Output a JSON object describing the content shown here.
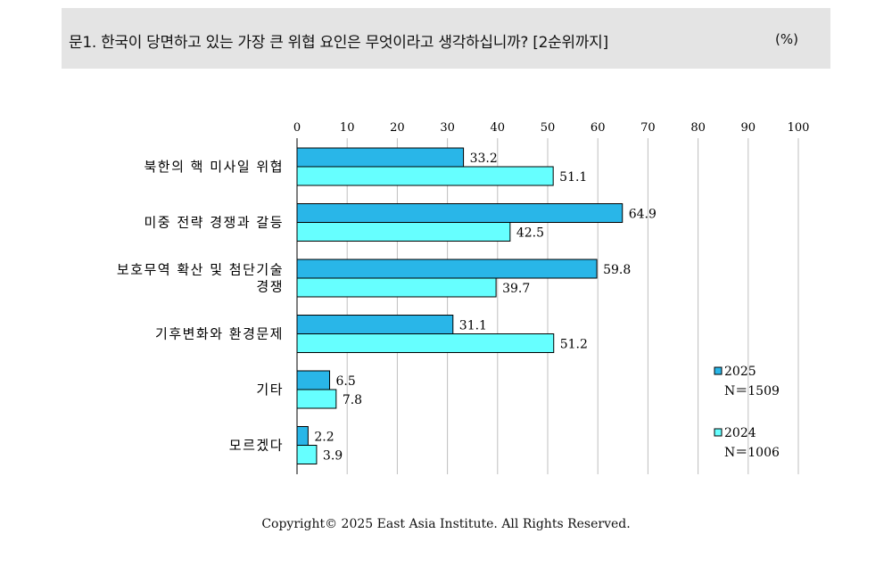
{
  "header": {
    "title": "문1. 한국이 당면하고 있는 가장 큰 위협 요인은 무엇이라고 생각하십니까? [2순위까지]",
    "unit": "(%)"
  },
  "colors": {
    "series_2025": "#29B6E8",
    "series_2024": "#66FFFF",
    "grid": "#bfbfbf",
    "axis": "#000000"
  },
  "chart_data": {
    "type": "bar",
    "orientation": "horizontal",
    "categories": [
      "북한의 핵 미사일 위협",
      "미중 전략 경쟁과 갈등",
      "보호무역 확산 및 첨단기술 경쟁",
      "기후변화와 환경문제",
      "기타",
      "모르겠다"
    ],
    "category_lines": [
      [
        "북한의 핵 미사일 위협"
      ],
      [
        "미중 전략 경쟁과 갈등"
      ],
      [
        "보호무역 확산 및 첨단기술",
        "경쟁"
      ],
      [
        "기후변화와 환경문제"
      ],
      [
        "기타"
      ],
      [
        "모르겠다"
      ]
    ],
    "series": [
      {
        "name": "2025",
        "n": "N＝1509",
        "values": [
          33.2,
          64.9,
          59.8,
          31.1,
          6.5,
          2.2
        ]
      },
      {
        "name": "2024",
        "n": "N＝1006",
        "values": [
          51.1,
          42.5,
          39.7,
          51.2,
          7.8,
          3.9
        ]
      }
    ],
    "xlim": [
      0,
      100
    ],
    "xticks": [
      0,
      10,
      20,
      30,
      40,
      50,
      60,
      70,
      80,
      90,
      100
    ],
    "grid": true,
    "legend_position": "bottom-right"
  },
  "footer": {
    "copyright": "Copyright© 2025 East Asia Institute. All Rights Reserved."
  }
}
